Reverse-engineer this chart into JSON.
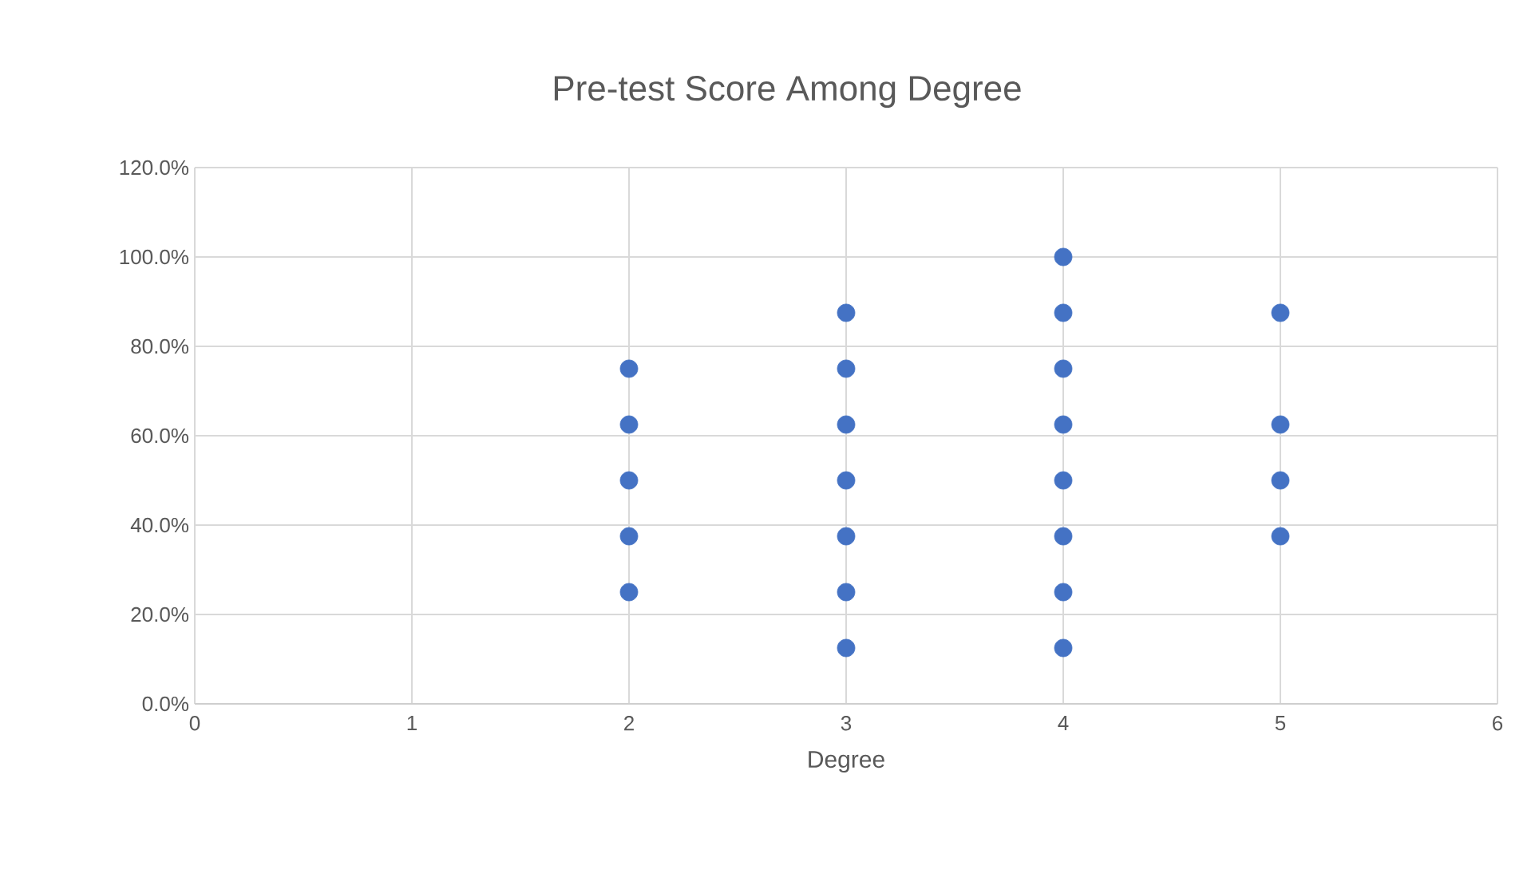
{
  "chart_data": {
    "type": "scatter",
    "title": "Pre-test Score Among Degree",
    "xlabel": "Degree",
    "x": [
      2,
      2,
      2,
      2,
      2,
      3,
      3,
      3,
      3,
      3,
      3,
      3,
      4,
      4,
      4,
      4,
      4,
      4,
      4,
      4,
      5,
      5,
      5,
      5
    ],
    "values": [
      25,
      37.5,
      50,
      62.5,
      75,
      12.5,
      25,
      37.5,
      50,
      62.5,
      75,
      87.5,
      12.5,
      25,
      37.5,
      50,
      62.5,
      75,
      87.5,
      100,
      37.5,
      50,
      62.5,
      87.5
    ],
    "color": "#4472c4",
    "marker": "circle",
    "grid": true,
    "xlim": [
      0,
      6
    ],
    "xticks": [
      0,
      1,
      2,
      3,
      4,
      5,
      6
    ],
    "ylim": [
      0,
      120
    ],
    "yticks": [
      {
        "value": 0,
        "label": "0.0%"
      },
      {
        "value": 20,
        "label": "20.0%"
      },
      {
        "value": 40,
        "label": "40.0%"
      },
      {
        "value": 60,
        "label": "60.0%"
      },
      {
        "value": 80,
        "label": "80.0%"
      },
      {
        "value": 100,
        "label": "100.0%"
      },
      {
        "value": 120,
        "label": "120.0%"
      }
    ]
  }
}
